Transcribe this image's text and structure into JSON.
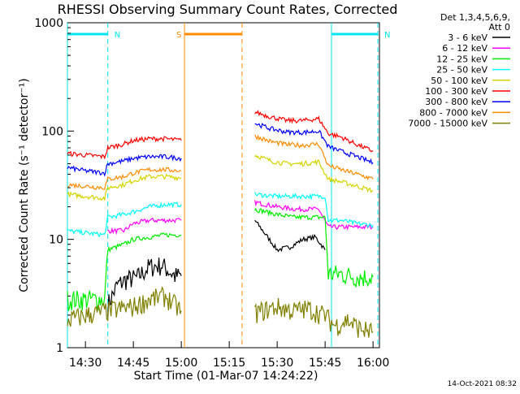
{
  "chart_data": {
    "type": "line",
    "title": "RHESSI Observing Summary Count Rates, Corrected",
    "xlabel": "Start Time (01-Mar-07 14:24:22)",
    "ylabel": "Corrected Count Rate (s⁻¹ detector⁻¹)",
    "y_scale": "log",
    "ylim": [
      1,
      1000
    ],
    "xlim": [
      "14:24:22",
      "16:02:00"
    ],
    "x_ticks": [
      "14:30",
      "14:45",
      "15:00",
      "15:15",
      "15:30",
      "15:45",
      "16:00"
    ],
    "y_ticks": [
      "1",
      "10",
      "100",
      "1000"
    ],
    "grid": false,
    "legend_position": "top-right",
    "legend_header": [
      "Det 1,3,4,5,6,9,",
      "Att 0"
    ],
    "timestamp": "14-Oct-2021 08:32",
    "annotations": [
      {
        "label": "N",
        "color": "#00e5ee",
        "start": "14:24:22",
        "end": "14:37:00"
      },
      {
        "label": "N",
        "color": "#00e5ee",
        "start": "15:47:00",
        "end": "16:01:30"
      },
      {
        "label": "S",
        "color": "#ff8c00",
        "start": "15:01:00",
        "end": "15:19:00"
      }
    ],
    "series": [
      {
        "name": "3 - 6 keV",
        "color": "#000000",
        "x": [
          "14:37",
          "14:40",
          "14:43",
          "14:46",
          "14:50",
          "14:54",
          "14:58",
          "15:00",
          "15:23",
          "15:26",
          "15:30",
          "15:34",
          "15:38",
          "15:42",
          "15:45"
        ],
        "y": [
          2.5,
          3.8,
          4.3,
          4.4,
          5.6,
          5.8,
          4.6,
          4.6,
          15.0,
          11.5,
          8.0,
          8.5,
          10.0,
          10.5,
          8.0
        ]
      },
      {
        "name": "6 - 12 keV",
        "color": "#ff00ff",
        "x": [
          "14:37",
          "14:42",
          "14:45",
          "14:50",
          "14:55",
          "15:00",
          "15:23",
          "15:30",
          "15:36",
          "15:40",
          "15:43",
          "15:46",
          "15:50",
          "15:55",
          "16:00"
        ],
        "y": [
          12,
          12,
          14,
          15,
          15,
          15,
          22,
          20,
          19,
          19,
          19,
          13,
          13,
          13,
          13
        ]
      },
      {
        "name": "12 - 25 keV",
        "color": "#00ee00",
        "x": [
          "14:24:22",
          "14:30",
          "14:36",
          "14:37",
          "14:42",
          "14:45",
          "14:50",
          "14:55",
          "15:00",
          "15:23",
          "15:30",
          "15:35",
          "15:40",
          "15:45",
          "15:46",
          "15:50",
          "15:55",
          "16:00"
        ],
        "y": [
          2.8,
          2.8,
          2.8,
          8,
          9,
          10,
          10.5,
          11,
          11,
          19,
          17,
          16,
          16,
          16,
          4.8,
          4.8,
          4.5,
          4.5
        ]
      },
      {
        "name": "25 - 50 keV",
        "color": "#00ffff",
        "x": [
          "14:24:22",
          "14:30",
          "14:36",
          "14:37",
          "14:42",
          "14:45",
          "14:50",
          "14:55",
          "15:00",
          "15:23",
          "15:30",
          "15:36",
          "15:40",
          "15:45",
          "15:46",
          "15:50",
          "15:55",
          "16:00"
        ],
        "y": [
          12,
          11.5,
          11,
          16,
          17,
          18,
          20,
          21,
          21,
          26,
          25,
          25,
          25,
          25,
          15,
          15,
          14,
          13.5
        ]
      },
      {
        "name": "50 - 100 keV",
        "color": "#d4d400",
        "x": [
          "14:24:22",
          "14:30",
          "14:36",
          "14:37",
          "14:42",
          "14:45",
          "14:50",
          "14:55",
          "15:00",
          "15:23",
          "15:28",
          "15:33",
          "15:38",
          "15:43",
          "15:46",
          "15:50",
          "15:55",
          "16:00"
        ],
        "y": [
          26,
          25,
          24,
          30,
          32,
          35,
          38,
          38,
          37,
          60,
          53,
          50,
          50,
          52,
          36,
          34,
          31,
          28
        ]
      },
      {
        "name": "100 - 300 keV",
        "color": "#ff0000",
        "x": [
          "14:24:22",
          "14:30",
          "14:36",
          "14:37",
          "14:42",
          "14:45",
          "14:50",
          "14:55",
          "15:00",
          "15:23",
          "15:28",
          "15:33",
          "15:38",
          "15:43",
          "15:46",
          "15:50",
          "15:55",
          "16:00"
        ],
        "y": [
          62,
          60,
          58,
          70,
          76,
          82,
          85,
          85,
          82,
          150,
          135,
          125,
          125,
          130,
          95,
          88,
          75,
          65
        ]
      },
      {
        "name": "300 - 800 keV",
        "color": "#0000ff",
        "x": [
          "14:24:22",
          "14:30",
          "14:36",
          "14:37",
          "14:42",
          "14:45",
          "14:50",
          "14:55",
          "15:00",
          "15:23",
          "15:28",
          "15:33",
          "15:38",
          "15:43",
          "15:46",
          "15:50",
          "15:55",
          "16:00"
        ],
        "y": [
          46,
          43,
          41,
          50,
          53,
          56,
          58,
          58,
          56,
          118,
          105,
          98,
          97,
          100,
          72,
          65,
          58,
          51
        ]
      },
      {
        "name": "800 - 7000 keV",
        "color": "#ff8c00",
        "x": [
          "14:24:22",
          "14:30",
          "14:36",
          "14:37",
          "14:42",
          "14:45",
          "14:50",
          "14:55",
          "15:00",
          "15:23",
          "15:28",
          "15:33",
          "15:38",
          "15:43",
          "15:46",
          "15:50",
          "15:55",
          "16:00"
        ],
        "y": [
          32,
          31,
          30,
          36,
          38,
          41,
          44,
          44,
          43,
          90,
          80,
          75,
          74,
          76,
          48,
          44,
          40,
          36
        ]
      },
      {
        "name": "7000 - 15000 keV",
        "color": "#808000",
        "x": [
          "14:24:22",
          "14:30",
          "14:37",
          "14:45",
          "14:50",
          "14:55",
          "15:00",
          "15:23",
          "15:30",
          "15:35",
          "15:40",
          "15:45",
          "15:48",
          "15:52",
          "15:56",
          "16:00"
        ],
        "y": [
          1.8,
          2.0,
          2.2,
          2.4,
          2.8,
          3.0,
          2.2,
          2.1,
          2.4,
          2.2,
          2.3,
          2.0,
          1.6,
          1.8,
          1.5,
          1.4
        ]
      }
    ]
  }
}
